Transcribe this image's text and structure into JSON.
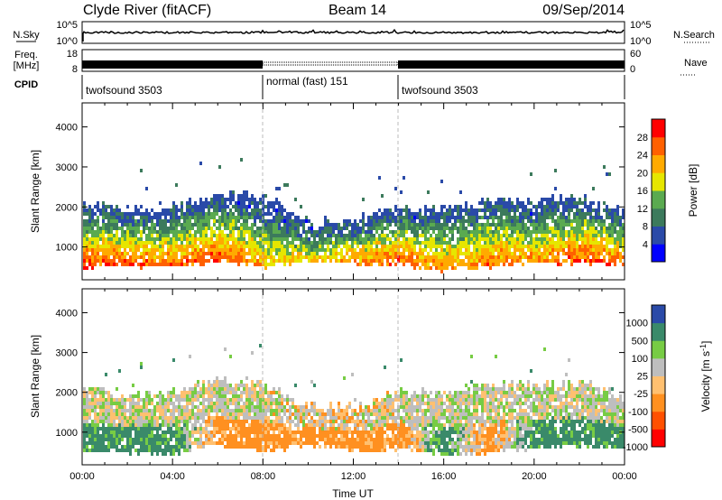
{
  "header": {
    "station": "Clyde River (fitACF)",
    "beam": "Beam 14",
    "date": "09/Sep/2014"
  },
  "strip_labels": {
    "nsky": "N.Sky",
    "nsearch": "N.Search",
    "freq_top": "Freq.",
    "freq_unit": "[MHz]",
    "nave": "Nave",
    "cpid": "CPID",
    "nsky_ticks": [
      "10^5",
      "10^0"
    ],
    "nsearch_ticks": [
      "10^5",
      "10^0"
    ],
    "freq_ticks": [
      "18",
      "8"
    ],
    "nave_ticks": [
      "60",
      "0"
    ]
  },
  "cpid_segments": [
    {
      "start_h": 0,
      "end_h": 8,
      "label": "twofsound 3503"
    },
    {
      "start_h": 8,
      "end_h": 14,
      "label": "normal (fast) 151"
    },
    {
      "start_h": 14,
      "end_h": 24,
      "label": "twofsound 3503"
    }
  ],
  "colors": {
    "power_scale": [
      "#0000ff",
      "#2a4aa8",
      "#3c7a5c",
      "#5aaa50",
      "#e6e600",
      "#ffaa00",
      "#ff6000",
      "#ff0000"
    ],
    "velocity_scale": [
      "#ff0000",
      "#ff5000",
      "#ff9020",
      "#ffc070",
      "#bebebe",
      "#77cc44",
      "#3a8a6a",
      "#2a4aa8"
    ]
  },
  "chart_data": [
    {
      "type": "heatmap",
      "title": "Power",
      "ylabel": "Slant Range [km]",
      "xlabel": "",
      "xlim_hours": [
        0,
        24
      ],
      "ylim": [
        180,
        4600
      ],
      "y_ticks": [
        "1000",
        "2000",
        "3000",
        "4000"
      ],
      "colorbar_label": "Power [dB]",
      "colorbar_ticks": [
        "4",
        "8",
        "12",
        "16",
        "20",
        "24",
        "28"
      ],
      "colorbar_range": [
        0,
        32
      ],
      "band_profile": {
        "hours": [
          0,
          2,
          4,
          6,
          8,
          10,
          12,
          14,
          16,
          18,
          20,
          22,
          24
        ],
        "top_km": [
          2150,
          2000,
          2050,
          2400,
          2250,
          1700,
          1700,
          2050,
          2000,
          2250,
          2200,
          2300,
          1950
        ],
        "bottom_km": [
          550,
          550,
          500,
          700,
          550,
          700,
          600,
          600,
          450,
          550,
          650,
          650,
          600
        ],
        "peak_power_db": [
          28,
          28,
          26,
          28,
          22,
          20,
          24,
          28,
          24,
          26,
          24,
          28,
          26
        ]
      }
    },
    {
      "type": "heatmap",
      "title": "Velocity",
      "ylabel": "Slant Range [km]",
      "xlabel": "Time UT",
      "xlim_hours": [
        0,
        24
      ],
      "x_ticks": [
        "00:00",
        "04:00",
        "08:00",
        "12:00",
        "16:00",
        "20:00",
        "00:00"
      ],
      "ylim": [
        180,
        4600
      ],
      "y_ticks": [
        "1000",
        "2000",
        "3000",
        "4000"
      ],
      "colorbar_label": "Velocity [m s^-1]",
      "colorbar_ticks": [
        "1000",
        "500",
        "100",
        "25",
        "-25",
        "-100",
        "-500",
        "-1000"
      ],
      "band_profile": {
        "hours": [
          0,
          2,
          4,
          6,
          8,
          10,
          12,
          14,
          16,
          18,
          20,
          22,
          24
        ],
        "top_km": [
          2150,
          2000,
          2050,
          2400,
          2250,
          1700,
          1700,
          2050,
          2000,
          2250,
          2200,
          2300,
          1950
        ],
        "bottom_km": [
          550,
          550,
          500,
          700,
          550,
          700,
          600,
          600,
          450,
          550,
          650,
          650,
          600
        ],
        "low_range_velocity": [
          100,
          100,
          100,
          -100,
          -100,
          -100,
          -100,
          -100,
          100,
          -100,
          100,
          100,
          100
        ],
        "high_range_velocity": [
          0,
          0,
          0,
          0,
          0,
          -25,
          -25,
          0,
          0,
          0,
          0,
          0,
          0
        ]
      }
    }
  ]
}
